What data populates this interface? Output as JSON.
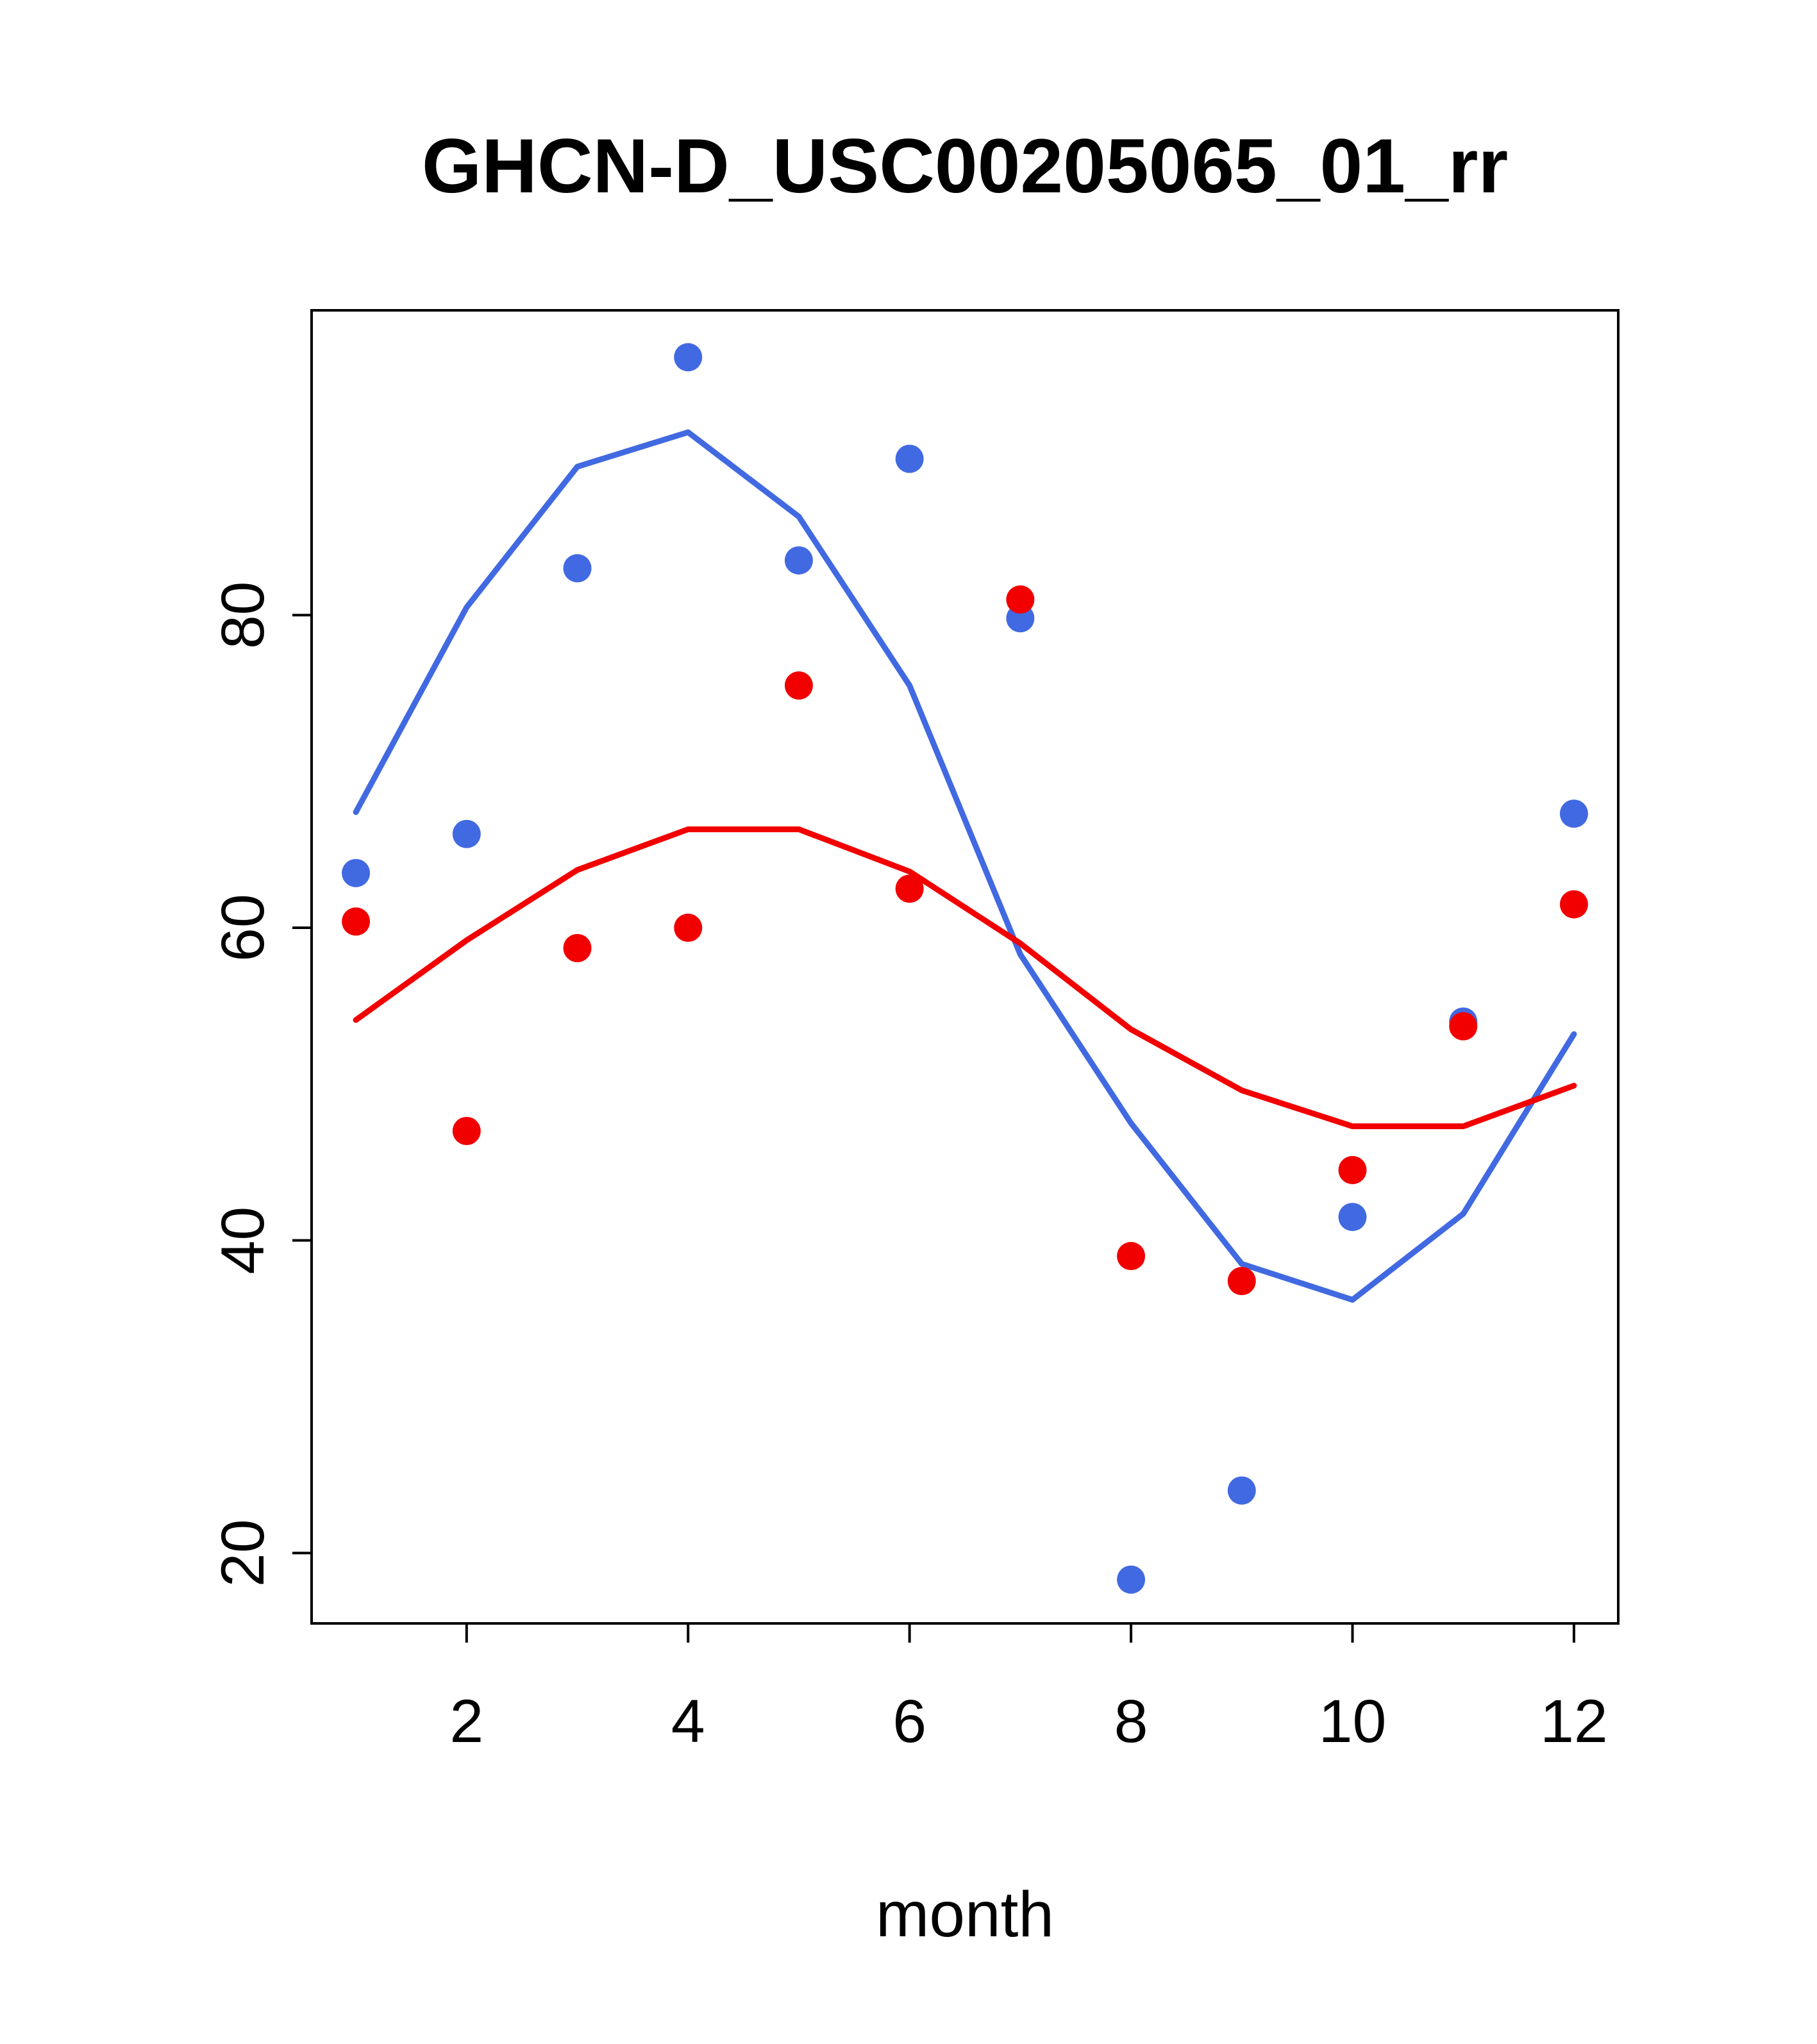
{
  "chart_data": {
    "type": "scatter",
    "title": "GHCN-D_USC00205065_01_rr",
    "xlabel": "month",
    "ylabel": "",
    "xlim": [
      0.6,
      12.4
    ],
    "ylim": [
      15.5,
      99.5
    ],
    "x_ticks": [
      2,
      4,
      6,
      8,
      10,
      12
    ],
    "y_ticks": [
      20,
      40,
      60,
      80
    ],
    "grid": false,
    "legend": false,
    "x": [
      1,
      2,
      3,
      4,
      5,
      6,
      7,
      8,
      9,
      10,
      11,
      12
    ],
    "colors": {
      "blue": "#4169E1",
      "red": "#F20000"
    },
    "series": [
      {
        "name": "blue-trend-line",
        "type": "line",
        "color": "#4169E1",
        "values": [
          67.4,
          80.5,
          89.5,
          91.7,
          86.3,
          75.5,
          58.3,
          47.5,
          38.5,
          36.2,
          41.7,
          53.2
        ]
      },
      {
        "name": "red-trend-line",
        "type": "line",
        "color": "#F20000",
        "values": [
          54.1,
          59.2,
          63.7,
          66.3,
          66.3,
          63.6,
          59.0,
          53.5,
          49.6,
          47.3,
          47.3,
          49.9
        ]
      },
      {
        "name": "blue-points",
        "type": "points",
        "color": "#4169E1",
        "values": [
          63.5,
          66.0,
          83.0,
          96.5,
          83.5,
          90.0,
          79.8,
          18.3,
          24.0,
          41.5,
          54.0,
          67.3
        ]
      },
      {
        "name": "red-points",
        "type": "points",
        "color": "#F20000",
        "values": [
          60.4,
          47.0,
          58.7,
          60.0,
          75.5,
          62.5,
          81.0,
          39.0,
          37.4,
          44.5,
          53.7,
          61.5
        ]
      }
    ]
  }
}
